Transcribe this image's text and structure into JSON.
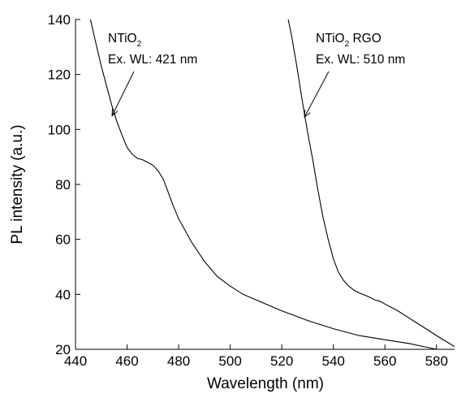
{
  "chart_data": {
    "type": "line",
    "title": "",
    "xlabel": "Wavelength (nm)",
    "ylabel": "PL intensity (a.u.)",
    "xlim": [
      440,
      587
    ],
    "ylim": [
      20,
      140
    ],
    "xticks": [
      440,
      460,
      480,
      500,
      520,
      540,
      560,
      580
    ],
    "yticks": [
      20,
      40,
      60,
      80,
      100,
      120,
      140
    ],
    "grid": false,
    "legend": "none",
    "series": [
      {
        "color": "#000000",
        "x": [
          445.8,
          448,
          450,
          452,
          454,
          456,
          458,
          460,
          462,
          464,
          466,
          468,
          470,
          472,
          474,
          476,
          478,
          480,
          485,
          490,
          495,
          500,
          505,
          510,
          520,
          530,
          540,
          550,
          560,
          570,
          580
        ],
        "y": [
          140,
          131,
          123,
          116,
          109,
          103,
          98,
          93.5,
          91,
          89.5,
          89,
          88,
          87,
          85,
          82,
          77,
          72,
          67.5,
          59,
          52,
          46.5,
          43,
          40,
          38,
          34,
          30.5,
          27.5,
          25,
          23.5,
          22,
          20
        ]
      },
      {
        "color": "#000000",
        "x": [
          522.5,
          524,
          526,
          528,
          530,
          532,
          534,
          536,
          538,
          540,
          542,
          544,
          546,
          548,
          550,
          552,
          554,
          556,
          558,
          560,
          562,
          565,
          570,
          575,
          580,
          587
        ],
        "y": [
          140,
          133,
          122,
          110,
          99,
          89,
          78,
          68,
          60,
          53,
          48,
          45,
          43,
          41.5,
          40.5,
          39.8,
          39,
          38,
          37.5,
          36.5,
          35.5,
          34,
          31,
          28,
          25,
          21
        ]
      }
    ],
    "annotations": [
      {
        "lines": [
          "NTiO2",
          "Ex. WL: 421 nm"
        ],
        "arrow_to": [
          454.2,
          105
        ]
      },
      {
        "lines": [
          "NTiO2 RGO",
          "Ex. WL: 510 nm"
        ],
        "arrow_to": [
          528.8,
          104.5
        ]
      }
    ]
  }
}
